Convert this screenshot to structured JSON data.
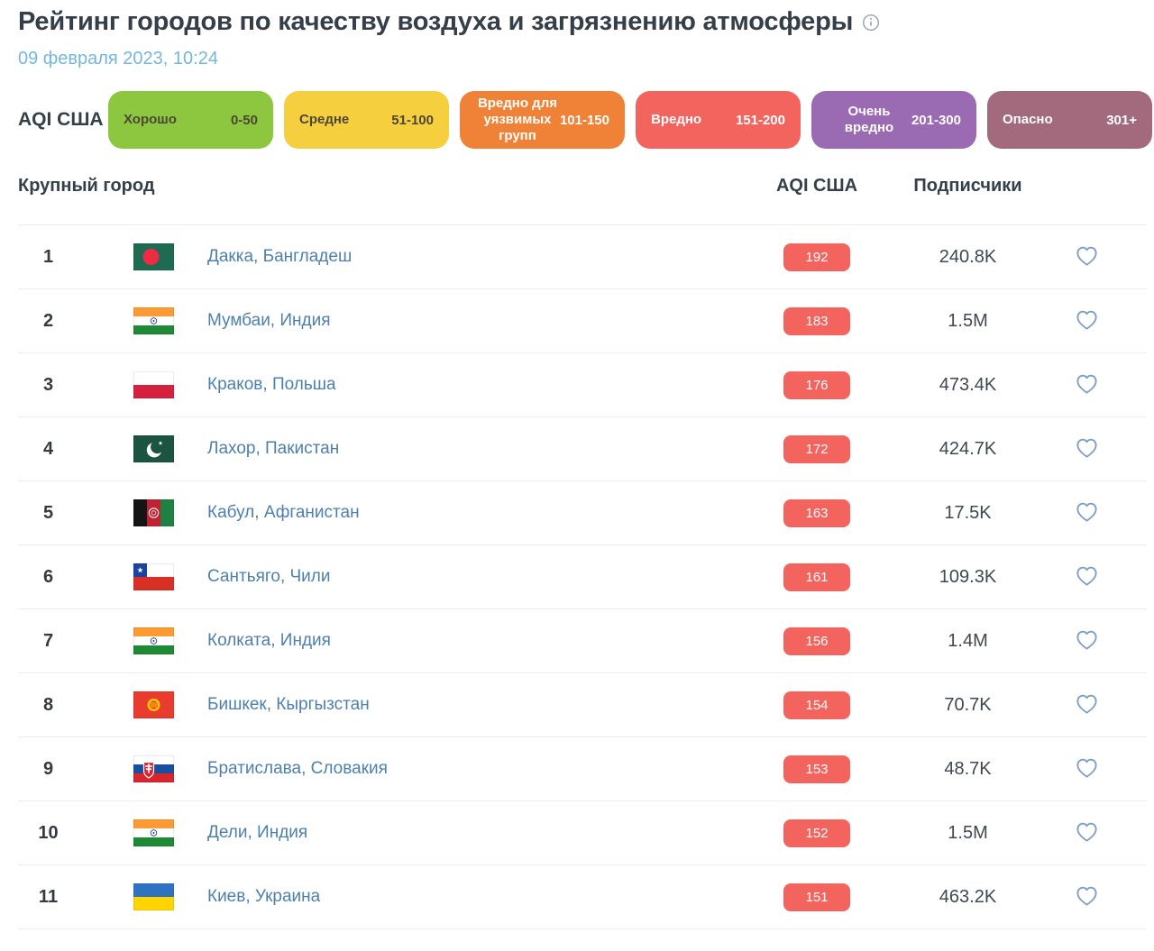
{
  "page": {
    "title": "Рейтинг городов по качеству воздуха и загрязнению атмосферы",
    "date": "09 февраля 2023, 10:24"
  },
  "legend": {
    "label": "AQI США",
    "items": [
      {
        "label": "Хорошо",
        "range": "0-50",
        "color": "#8dc63f",
        "text_color": "#4c4637"
      },
      {
        "label": "Средне",
        "range": "51-100",
        "color": "#f6cf3f",
        "text_color": "#4c4637"
      },
      {
        "label": "Вредно для уязвимых групп",
        "range": "101-150",
        "color": "#ef8236",
        "text_color": "#ffffff"
      },
      {
        "label": "Вредно",
        "range": "151-200",
        "color": "#f4645e",
        "text_color": "#ffffff"
      },
      {
        "label": "Очень вредно",
        "range": "201-300",
        "color": "#9a6ab3",
        "text_color": "#ffffff"
      },
      {
        "label": "Опасно",
        "range": "301+",
        "color": "#a36a7d",
        "text_color": "#ffffff"
      }
    ]
  },
  "table": {
    "headers": {
      "city": "Крупный город",
      "aqi": "AQI США",
      "followers": "Подписчики"
    },
    "aqi_badge_color": "#f4645e",
    "rows": [
      {
        "rank": "1",
        "flag": "bd",
        "city": "Дакка, Бангладеш",
        "aqi": "192",
        "followers": "240.8K"
      },
      {
        "rank": "2",
        "flag": "in",
        "city": "Мумбаи, Индия",
        "aqi": "183",
        "followers": "1.5M"
      },
      {
        "rank": "3",
        "flag": "pl",
        "city": "Краков, Польша",
        "aqi": "176",
        "followers": "473.4K"
      },
      {
        "rank": "4",
        "flag": "pk",
        "city": "Лахор, Пакистан",
        "aqi": "172",
        "followers": "424.7K"
      },
      {
        "rank": "5",
        "flag": "af",
        "city": "Кабул, Афганистан",
        "aqi": "163",
        "followers": "17.5K"
      },
      {
        "rank": "6",
        "flag": "cl",
        "city": "Сантьяго, Чили",
        "aqi": "161",
        "followers": "109.3K"
      },
      {
        "rank": "7",
        "flag": "in",
        "city": "Колката, Индия",
        "aqi": "156",
        "followers": "1.4M"
      },
      {
        "rank": "8",
        "flag": "kg",
        "city": "Бишкек, Кыргызстан",
        "aqi": "154",
        "followers": "70.7K"
      },
      {
        "rank": "9",
        "flag": "sk",
        "city": "Братислава, Словакия",
        "aqi": "153",
        "followers": "48.7K"
      },
      {
        "rank": "10",
        "flag": "in",
        "city": "Дели, Индия",
        "aqi": "152",
        "followers": "1.5M"
      },
      {
        "rank": "11",
        "flag": "ua",
        "city": "Киев, Украина",
        "aqi": "151",
        "followers": "463.2K"
      }
    ]
  },
  "icons": {
    "info": "info-icon",
    "heart": "heart-icon"
  },
  "colors": {
    "link": "#4d80ad",
    "date": "#73b7e1",
    "heart_stroke": "#7e9ec1"
  }
}
